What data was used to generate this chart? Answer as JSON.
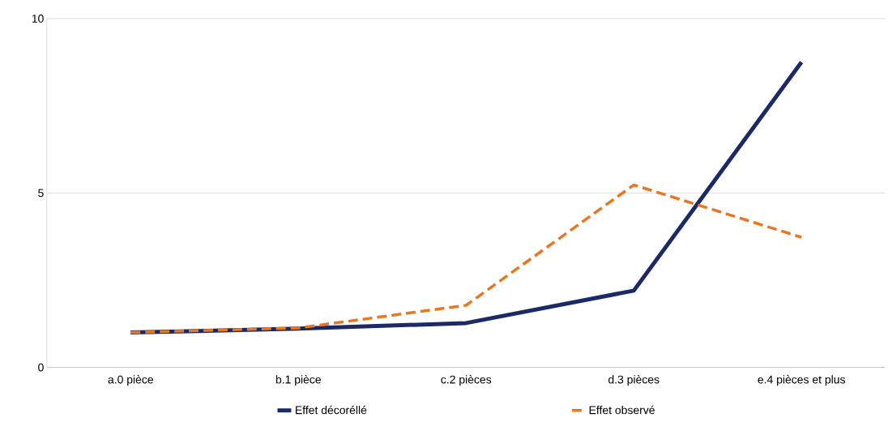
{
  "chart_data": {
    "type": "line",
    "categories": [
      "a.0 pièce",
      "b.1 pièce",
      "c.2 pièces",
      "d.3 pièces",
      "e.4 pièces et plus"
    ],
    "series": [
      {
        "name": "Effet décoréllé",
        "color": "#1b2a66",
        "line_style": "solid",
        "values": [
          1.0,
          1.11,
          1.27,
          2.2,
          8.75
        ]
      },
      {
        "name": "Effet observé",
        "color": "#e87722",
        "line_style": "dashed",
        "values": [
          1.0,
          1.13,
          1.78,
          5.23,
          3.73
        ]
      }
    ],
    "ylim": [
      0,
      10
    ],
    "yticks": [
      0,
      5,
      10
    ],
    "grid": "y",
    "legend": "bottom",
    "marker": "none"
  }
}
